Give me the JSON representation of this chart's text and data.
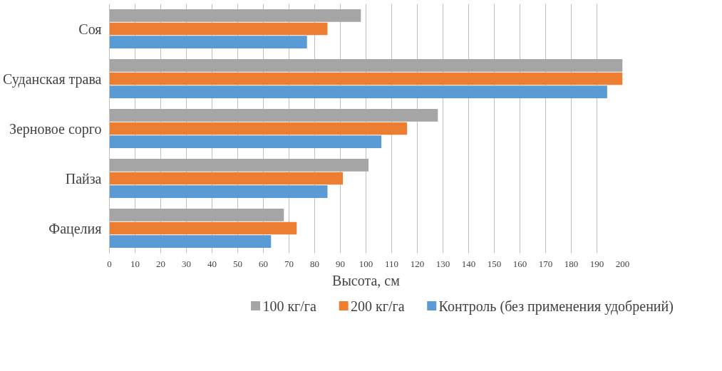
{
  "chart_data": {
    "type": "bar",
    "orientation": "horizontal",
    "xlabel": "Высота, см",
    "categories": [
      "Соя",
      "Суданская трава",
      "Зерновое сорго",
      "Пайза",
      "Фацелия"
    ],
    "series": [
      {
        "name": "100 кг/га",
        "color": "#a5a5a5",
        "values": [
          98,
          200,
          128,
          101,
          68
        ]
      },
      {
        "name": "200 кг/га",
        "color": "#ed7d31",
        "values": [
          85,
          200,
          116,
          91,
          73
        ]
      },
      {
        "name": "Контроль (без применения удобрений)",
        "color": "#5b9bd5",
        "values": [
          77,
          194,
          106,
          85,
          63
        ]
      }
    ],
    "xlim": [
      0,
      200
    ],
    "xticks": [
      0,
      10,
      20,
      30,
      40,
      50,
      60,
      70,
      80,
      90,
      100,
      110,
      120,
      130,
      140,
      150,
      160,
      170,
      180,
      190,
      200
    ],
    "grid": "x",
    "legend": "bottom"
  }
}
